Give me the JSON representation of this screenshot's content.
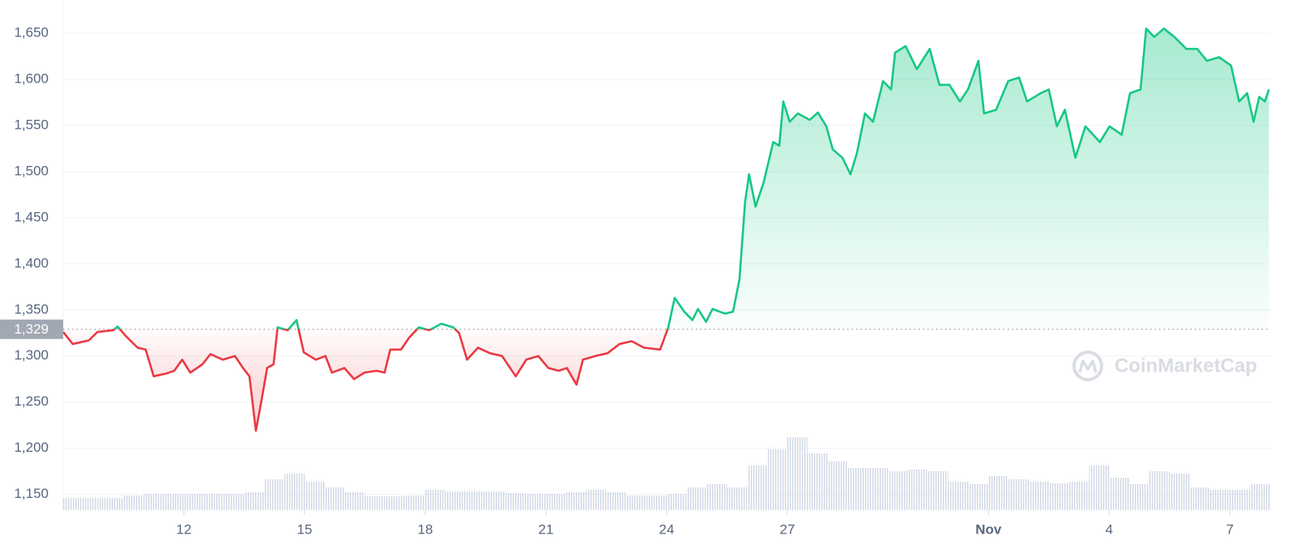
{
  "chart_data": {
    "type": "line",
    "up_color": "#16c784",
    "down_color": "#ea3943",
    "baseline": {
      "value": 1329,
      "label": "1,329"
    },
    "watermark": "CoinMarketCap",
    "grid": true,
    "xlim": [
      0,
      30
    ],
    "xticks": [
      {
        "value": 3,
        "label": "12"
      },
      {
        "value": 6,
        "label": "15"
      },
      {
        "value": 9,
        "label": "18"
      },
      {
        "value": 12,
        "label": "21"
      },
      {
        "value": 15,
        "label": "24"
      },
      {
        "value": 18,
        "label": "27"
      },
      {
        "value": 23,
        "label": "Nov"
      },
      {
        "value": 26,
        "label": "4"
      },
      {
        "value": 29,
        "label": "7"
      }
    ],
    "ylim": [
      1133,
      1686
    ],
    "yticks": [
      {
        "value": 1150,
        "label": "1,150"
      },
      {
        "value": 1200,
        "label": "1,200"
      },
      {
        "value": 1250,
        "label": "1,250"
      },
      {
        "value": 1300,
        "label": "1,300"
      },
      {
        "value": 1350,
        "label": "1,350"
      },
      {
        "value": 1400,
        "label": "1,400"
      },
      {
        "value": 1450,
        "label": "1,450"
      },
      {
        "value": 1500,
        "label": "1,500"
      },
      {
        "value": 1550,
        "label": "1,550"
      },
      {
        "value": 1600,
        "label": "1,600"
      },
      {
        "value": 1650,
        "label": "1,650"
      }
    ],
    "x": [
      0,
      0.24,
      0.64,
      0.85,
      1.25,
      1.35,
      1.55,
      1.85,
      2.05,
      2.25,
      2.56,
      2.76,
      2.96,
      3.16,
      3.46,
      3.66,
      3.97,
      4.27,
      4.47,
      4.63,
      4.79,
      4.91,
      5.07,
      5.23,
      5.33,
      5.58,
      5.8,
      5.98,
      6.28,
      6.52,
      6.68,
      6.99,
      7.23,
      7.49,
      7.79,
      7.99,
      8.13,
      8.4,
      8.6,
      8.84,
      9.1,
      9.4,
      9.7,
      9.84,
      10.04,
      10.31,
      10.61,
      10.91,
      11.25,
      11.51,
      11.81,
      12.06,
      12.32,
      12.52,
      12.76,
      12.92,
      13.23,
      13.53,
      13.83,
      14.13,
      14.44,
      14.84,
      15.04,
      15.2,
      15.44,
      15.64,
      15.78,
      15.98,
      16.14,
      16.45,
      16.65,
      16.81,
      16.95,
      17.05,
      17.21,
      17.41,
      17.65,
      17.8,
      17.9,
      18.06,
      18.26,
      18.56,
      18.76,
      18.97,
      19.13,
      19.37,
      19.57,
      19.73,
      19.93,
      20.13,
      20.38,
      20.58,
      20.68,
      20.94,
      21.22,
      21.54,
      21.78,
      22.03,
      22.29,
      22.49,
      22.75,
      22.89,
      23.19,
      23.49,
      23.76,
      23.96,
      24.3,
      24.5,
      24.7,
      24.9,
      25.16,
      25.41,
      25.77,
      26.01,
      26.31,
      26.52,
      26.78,
      26.92,
      27.12,
      27.36,
      27.62,
      27.92,
      28.19,
      28.43,
      28.73,
      29.03,
      29.23,
      29.43,
      29.59,
      29.73,
      29.87,
      29.97
    ],
    "values": [
      1326,
      1313,
      1317,
      1326,
      1328,
      1332,
      1322,
      1309,
      1307,
      1278,
      1281,
      1284,
      1296,
      1282,
      1291,
      1302,
      1296,
      1300,
      1287,
      1278,
      1219,
      1247,
      1287,
      1291,
      1331,
      1328,
      1339,
      1304,
      1296,
      1300,
      1282,
      1287,
      1275,
      1282,
      1284,
      1282,
      1307,
      1307,
      1320,
      1331,
      1328,
      1335,
      1331,
      1325,
      1296,
      1309,
      1303,
      1300,
      1278,
      1296,
      1300,
      1287,
      1284,
      1287,
      1269,
      1296,
      1300,
      1303,
      1313,
      1316,
      1309,
      1307,
      1331,
      1363,
      1348,
      1339,
      1351,
      1337,
      1351,
      1346,
      1348,
      1383,
      1467,
      1497,
      1462,
      1488,
      1532,
      1528,
      1576,
      1554,
      1563,
      1556,
      1564,
      1549,
      1524,
      1515,
      1497,
      1520,
      1563,
      1554,
      1598,
      1589,
      1629,
      1636,
      1611,
      1633,
      1594,
      1594,
      1576,
      1589,
      1620,
      1563,
      1567,
      1598,
      1602,
      1576,
      1585,
      1589,
      1549,
      1567,
      1515,
      1549,
      1532,
      1549,
      1540,
      1585,
      1589,
      1655,
      1646,
      1655,
      1646,
      1633,
      1633,
      1620,
      1624,
      1615,
      1576,
      1585,
      1554,
      1581,
      1576,
      1589
    ],
    "volume": {
      "vlim": [
        0,
        100
      ],
      "x": [
        0,
        0.5,
        1,
        1.5,
        2,
        2.5,
        3,
        3.5,
        4,
        4.5,
        5,
        5.5,
        6,
        6.5,
        7,
        7.5,
        8,
        8.5,
        9,
        9.5,
        10,
        10.5,
        11,
        11.5,
        12,
        12.5,
        13,
        13.5,
        14,
        14.5,
        15,
        15.5,
        16,
        16.5,
        17,
        17.5,
        18,
        18.5,
        19,
        19.5,
        20,
        20.5,
        21,
        21.5,
        22,
        22.5,
        23,
        23.5,
        24,
        24.5,
        25,
        25.5,
        26,
        26.5,
        27,
        27.5,
        28,
        28.5,
        29,
        29.5
      ],
      "values": [
        15,
        15,
        15,
        18,
        20,
        20,
        20,
        20,
        20,
        22,
        38,
        45,
        35,
        28,
        22,
        17,
        17,
        18,
        25,
        23,
        23,
        23,
        21,
        20,
        20,
        22,
        25,
        22,
        18,
        18,
        20,
        28,
        32,
        28,
        55,
        75,
        90,
        70,
        60,
        52,
        52,
        48,
        50,
        48,
        35,
        32,
        42,
        38,
        35,
        33,
        35,
        55,
        40,
        32,
        48,
        45,
        28,
        25,
        25,
        32
      ]
    }
  }
}
